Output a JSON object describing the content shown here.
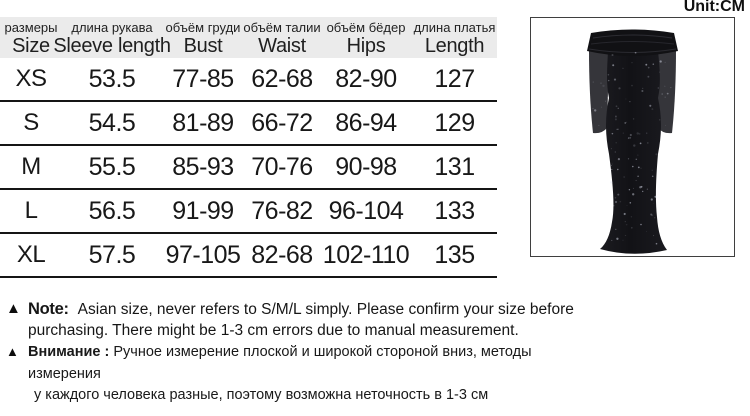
{
  "unit_label": "Unit:CM",
  "size_chart": {
    "columns": [
      {
        "ru": "размеры",
        "en": "Size"
      },
      {
        "ru": "длина рукава",
        "en": "Sleeve length"
      },
      {
        "ru": "объём груди",
        "en": "Bust"
      },
      {
        "ru": "объём талии",
        "en": "Waist"
      },
      {
        "ru": "объём бёдер",
        "en": "Hips"
      },
      {
        "ru": "длина платья",
        "en": "Length"
      }
    ],
    "rows": [
      {
        "size": "XS",
        "sleeve": "53.5",
        "bust": "77-85",
        "waist": "62-68",
        "hips": "82-90",
        "length": "127"
      },
      {
        "size": "S",
        "sleeve": "54.5",
        "bust": "81-89",
        "waist": "66-72",
        "hips": "86-94",
        "length": "129"
      },
      {
        "size": "M",
        "sleeve": "55.5",
        "bust": "85-93",
        "waist": "70-76",
        "hips": "90-98",
        "length": "131"
      },
      {
        "size": "L",
        "sleeve": "56.5",
        "bust": "91-99",
        "waist": "76-82",
        "hips": "96-104",
        "length": "133"
      },
      {
        "size": "XL",
        "sleeve": "57.5",
        "bust": "97-105",
        "waist": "82-68",
        "hips": "102-110",
        "length": "135"
      }
    ]
  },
  "notes": {
    "en": {
      "label": "Note:",
      "line1": "Asian size, never refers to S/M/L simply. Please confirm your size before",
      "line2": "purchasing. There might be 1-3 cm errors due to manual measurement."
    },
    "ru": {
      "label": "Внимание :",
      "line1": "Ручное измерение плоской и широкой стороной вниз, методы измерения",
      "line2": "у каждого человека разные, поэтому возможна неточность в 1-3 см"
    }
  },
  "product_image": {
    "description": "black off-shoulder long-sleeve sparkly mermaid maxi dress"
  },
  "colors": {
    "header_bg": "#ebebeb",
    "table_line": "#151515",
    "text": "#1c1c1c",
    "dress": "#141418"
  }
}
